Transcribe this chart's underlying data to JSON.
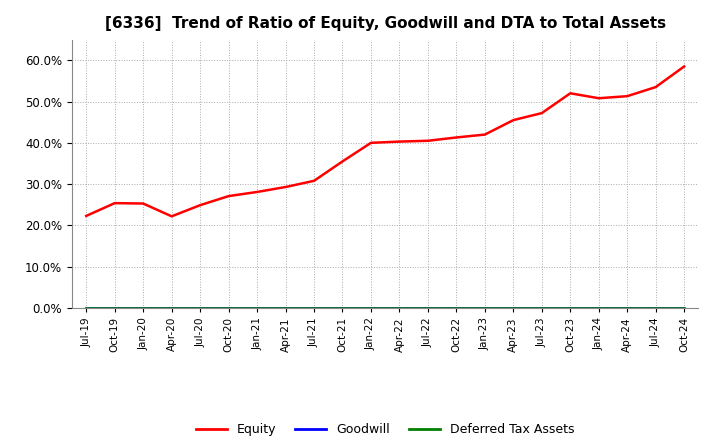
{
  "title": "[6336]  Trend of Ratio of Equity, Goodwill and DTA to Total Assets",
  "title_fontsize": 11,
  "background_color": "#ffffff",
  "grid_color": "#aaaaaa",
  "equity_color": "#ff0000",
  "goodwill_color": "#0000ff",
  "dta_color": "#008000",
  "x_labels": [
    "Jul-19",
    "Oct-19",
    "Jan-20",
    "Apr-20",
    "Jul-20",
    "Oct-20",
    "Jan-21",
    "Apr-21",
    "Jul-21",
    "Oct-21",
    "Jan-22",
    "Apr-22",
    "Jul-22",
    "Oct-22",
    "Jan-23",
    "Apr-23",
    "Jul-23",
    "Oct-23",
    "Jan-24",
    "Apr-24",
    "Jul-24",
    "Oct-24"
  ],
  "equity_values": [
    0.223,
    0.254,
    0.253,
    0.222,
    0.249,
    0.271,
    0.281,
    0.293,
    0.308,
    0.355,
    0.4,
    0.403,
    0.405,
    0.413,
    0.42,
    0.455,
    0.472,
    0.52,
    0.508,
    0.513,
    0.535,
    0.585
  ],
  "goodwill_values": [
    0.0,
    0.0,
    0.0,
    0.0,
    0.0,
    0.0,
    0.0,
    0.0,
    0.0,
    0.0,
    0.0,
    0.0,
    0.0,
    0.0,
    0.0,
    0.0,
    0.0,
    0.0,
    0.0,
    0.0,
    0.0,
    0.0
  ],
  "dta_values": [
    0.0,
    0.0,
    0.0,
    0.0,
    0.0,
    0.0,
    0.0,
    0.0,
    0.0,
    0.0,
    0.0,
    0.0,
    0.0,
    0.0,
    0.0,
    0.0,
    0.0,
    0.0,
    0.0,
    0.0,
    0.0,
    0.0
  ],
  "ylim": [
    0.0,
    0.65
  ],
  "yticks": [
    0.0,
    0.1,
    0.2,
    0.3,
    0.4,
    0.5,
    0.6
  ],
  "legend_labels": [
    "Equity",
    "Goodwill",
    "Deferred Tax Assets"
  ]
}
